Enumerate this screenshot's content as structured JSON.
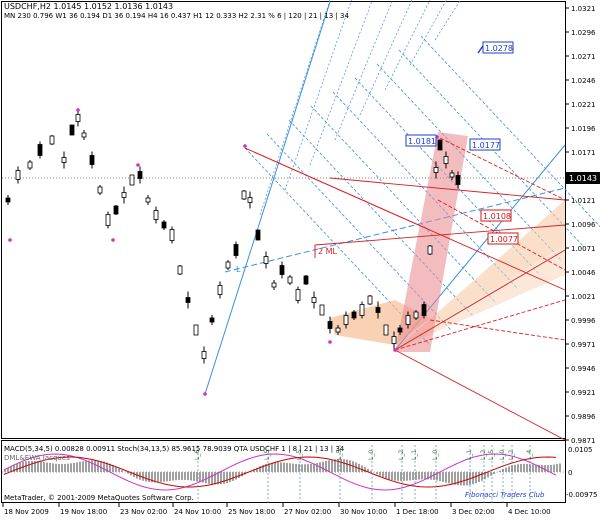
{
  "header": {
    "line1": "USDCHF,H2  1.0145 1.0152 1.0136 1.0143",
    "line2": "MN 230  0.796 W1 36  0.194 D1 36  0.194 H4 16  0.437 H1 12  0.333 H2  2.31 % 6 | 120 | 21 | 13 | 34"
  },
  "price_axis": {
    "labels": [
      "1.0321",
      "1.0296",
      "1.0271",
      "1.0246",
      "1.0221",
      "1.0196",
      "1.0171",
      "1.0146",
      "1.0121",
      "1.0096",
      "1.0071",
      "1.0046",
      "1.0021",
      "0.9996",
      "0.9971",
      "0.9946",
      "0.9921",
      "0.9896",
      "0.9871"
    ],
    "current_price": "1.0143"
  },
  "time_axis": {
    "labels": [
      "18 Nov 2009",
      "19 Nov 18:00",
      "23 Nov 02:00",
      "24 Nov 10:00",
      "25 Nov 18:00",
      "27 Nov 02:00",
      "30 Nov 10:00",
      "1 Dec 18:00",
      "3 Dec 02:00",
      "4 Dec 10:00"
    ]
  },
  "price_boxes": [
    {
      "text": "1.0278",
      "color": "#1f3fcf"
    },
    {
      "text": "1.0181",
      "color": "#1f3fcf"
    },
    {
      "text": "1.0177",
      "color": "#1f3fcf"
    },
    {
      "text": "1.0108",
      "color": "#d01818"
    },
    {
      "text": "1.0077",
      "color": "#d01818"
    }
  ],
  "annotations": {
    "ml_label": "2 ML",
    "l_label": "L"
  },
  "indicator": {
    "title": "MACD(5,34,5) 0.00828 0.00911  Stoch(34,13,5) 85.9615 78.9039  QTA USDCHF  1 | 8 | 21 | 13 | 34",
    "title2": "DML&EWA Jacques",
    "axis_top": "0.0105",
    "axis_bottom": "-0.00975",
    "axis_zero": "0",
    "labels": [
      "L_6",
      "L_5",
      "L_5",
      "L_5",
      "L_0",
      "L_2",
      "L_1",
      "L_0",
      "L_1",
      "L_2",
      "L_5",
      "L_0",
      "L_2",
      "L_4"
    ]
  },
  "footer": {
    "copyright": "MetaTrader, © 2001-2009 MetaQuotes Software Corp.",
    "club": "Fibonacci Traders Club"
  },
  "colors": {
    "fib_blue": "#3b8fe0",
    "red": "#d82020",
    "orange_fill": "#f6b98e",
    "pink_fill": "#e9868c",
    "candle": "#000000",
    "macd_hist": "#a0a0a0",
    "stoch_line": "#cc33cc",
    "signal_line": "#cc0000"
  }
}
